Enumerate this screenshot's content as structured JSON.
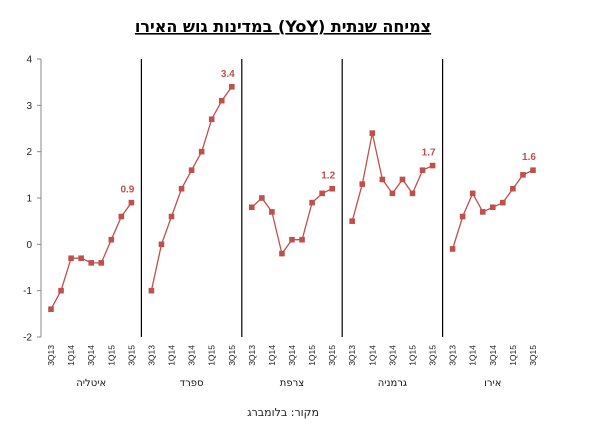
{
  "chart_data": {
    "type": "line",
    "title": "צמיחה שנתית (YoY) במדינות גוש האירו",
    "source": "מקור: בלומברג",
    "ylim": [
      -2,
      4
    ],
    "yticks": [
      "4",
      "3",
      "2",
      "1",
      "0",
      "-1",
      "-2"
    ],
    "x": [
      "3Q13",
      "4Q13",
      "1Q14",
      "2Q14",
      "3Q14",
      "4Q14",
      "1Q15",
      "2Q15",
      "3Q15"
    ],
    "x_tick_labels": [
      "3Q13",
      "1Q14",
      "3Q14",
      "1Q15",
      "3Q15"
    ],
    "grid": false,
    "series_color": "#c0504d",
    "panels": [
      {
        "name": "איטליה",
        "values": [
          -1.4,
          -1.0,
          -0.3,
          -0.3,
          -0.4,
          -0.4,
          0.1,
          0.6,
          0.9
        ],
        "last_label": "0.9"
      },
      {
        "name": "ספרד",
        "values": [
          -1.0,
          0.0,
          0.6,
          1.2,
          1.6,
          2.0,
          2.7,
          3.1,
          3.4
        ],
        "last_label": "3.4"
      },
      {
        "name": "צרפת",
        "values": [
          0.8,
          1.0,
          0.7,
          -0.2,
          0.1,
          0.1,
          0.9,
          1.1,
          1.2
        ],
        "last_label": "1.2"
      },
      {
        "name": "גרמניה",
        "values": [
          0.5,
          1.3,
          2.4,
          1.4,
          1.1,
          1.4,
          1.1,
          1.6,
          1.7
        ],
        "last_label": "1.7"
      },
      {
        "name": "אירו",
        "values": [
          -0.1,
          0.6,
          1.1,
          0.7,
          0.8,
          0.9,
          1.2,
          1.5,
          1.6
        ],
        "last_label": "1.6"
      }
    ]
  }
}
